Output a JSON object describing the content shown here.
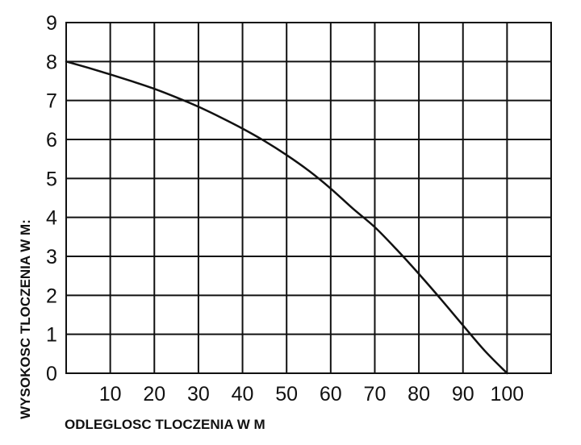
{
  "chart_data": {
    "type": "line",
    "xlabel": "ODLEGLOSC TLOCZENIA W M",
    "ylabel": "WYSOKOSC TLOCZENIA W M:",
    "xlim": [
      0,
      110
    ],
    "ylim": [
      0,
      9
    ],
    "x_ticks": [
      "10",
      "20",
      "30",
      "40",
      "50",
      "60",
      "70",
      "80",
      "90",
      "100"
    ],
    "y_ticks": [
      "0",
      "1",
      "2",
      "3",
      "4",
      "5",
      "6",
      "7",
      "8",
      "9"
    ],
    "grid": true,
    "series": [
      {
        "x": [
          0,
          5,
          10,
          15,
          20,
          25,
          30,
          35,
          40,
          45,
          50,
          55,
          60,
          65,
          70,
          75,
          80,
          85,
          90,
          95,
          100
        ],
        "y": [
          8.0,
          7.84,
          7.67,
          7.49,
          7.3,
          7.08,
          6.84,
          6.57,
          6.28,
          5.96,
          5.6,
          5.2,
          4.74,
          4.23,
          3.75,
          3.17,
          2.55,
          1.9,
          1.23,
          0.57,
          0.0
        ]
      }
    ],
    "colors": {
      "line": "#111111",
      "grid": "#111111",
      "background": "#ffffff"
    }
  }
}
